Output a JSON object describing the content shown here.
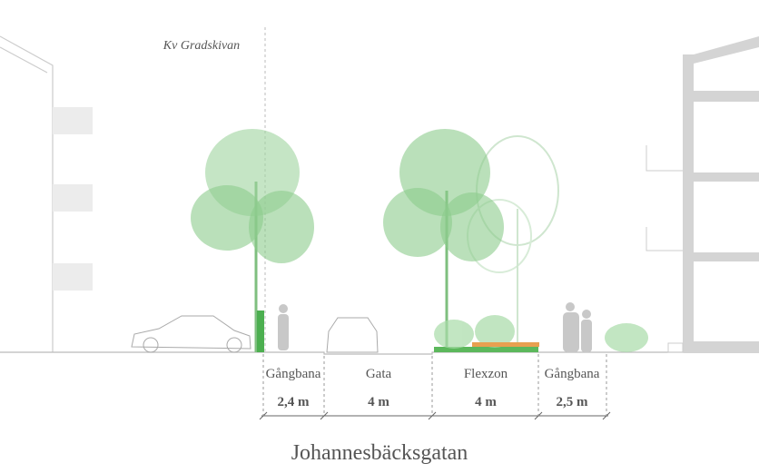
{
  "block_label": "Kv Gradskivan",
  "zones": [
    {
      "label": "Gångbana",
      "width": "2,4 m"
    },
    {
      "label": "Gata",
      "width": "4 m"
    },
    {
      "label": "Flexzon",
      "width": "4 m"
    },
    {
      "label": "Gångbana",
      "width": "2,5 m"
    }
  ],
  "street_name": "Johannesbäcksgatan"
}
